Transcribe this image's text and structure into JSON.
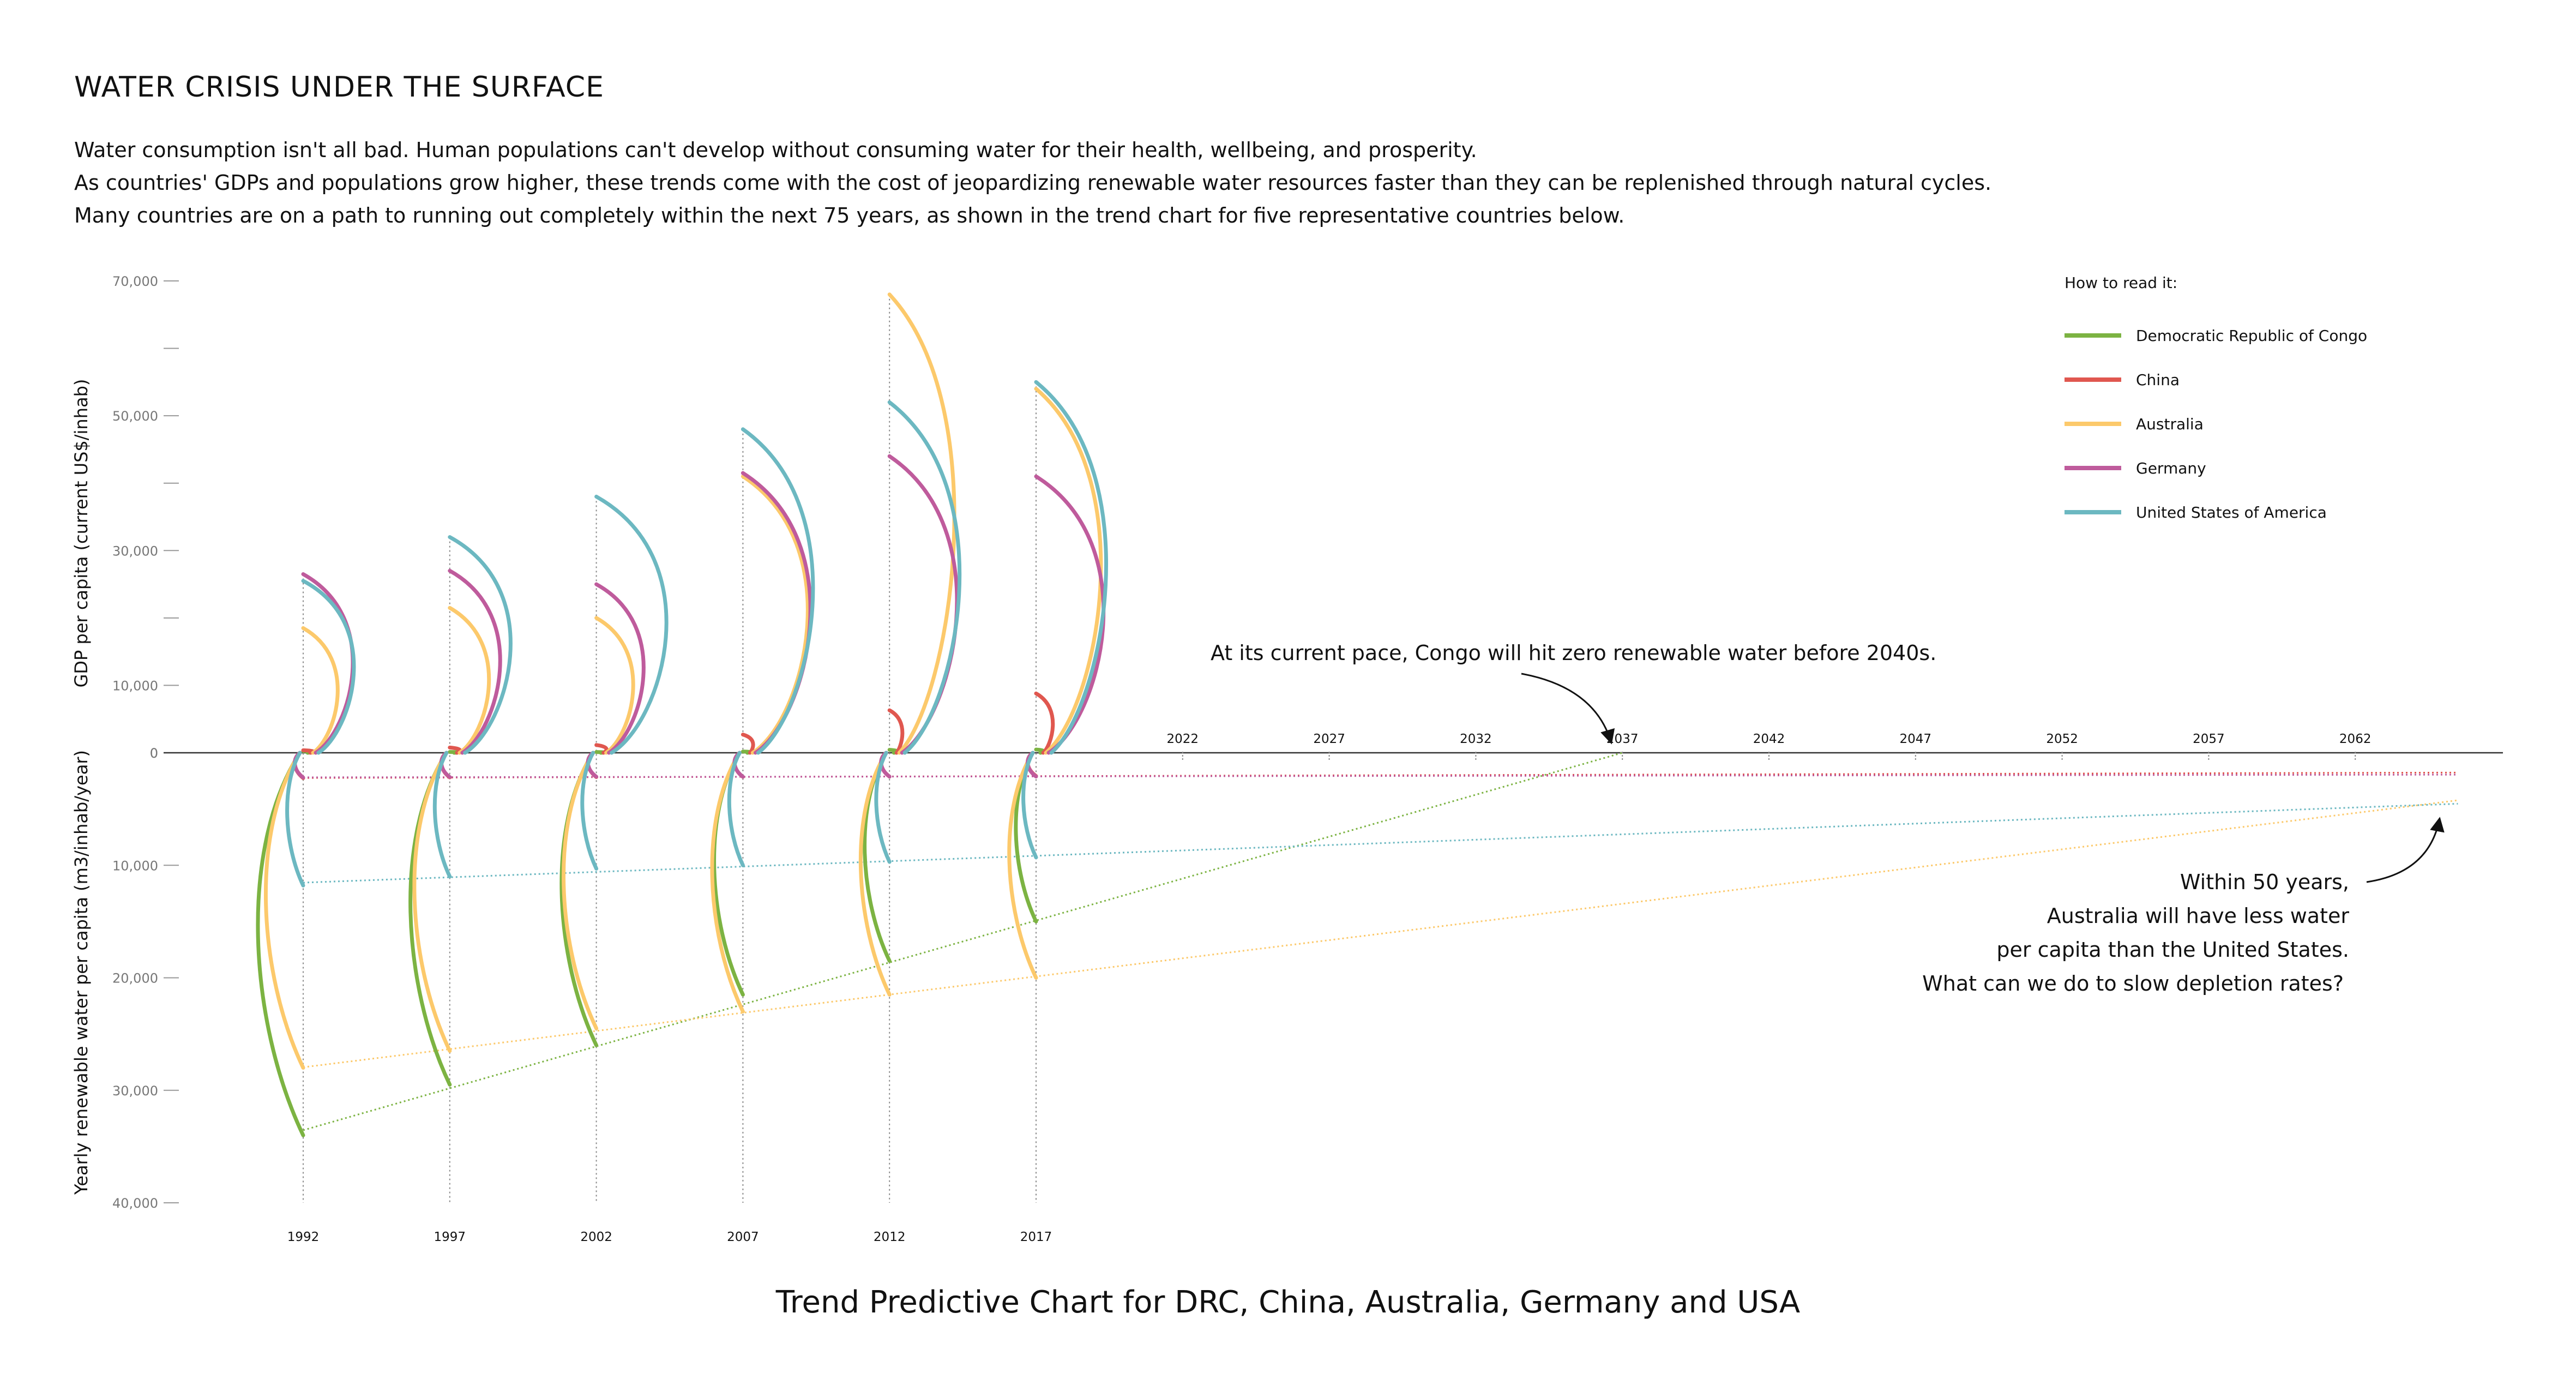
{
  "header": {
    "title": "WATER CRISIS UNDER THE SURFACE",
    "intro": [
      "Water consumption isn't all bad. Human populations can't develop without consuming water for their health, wellbeing, and prosperity.",
      "As countries' GDPs and populations grow higher, these trends come with the cost of jeopardizing renewable water resources faster than they can be replenished through natural cycles.",
      "Many countries are on a path to running out completely within the next 75 years, as shown in the trend chart for five representative countries below."
    ]
  },
  "footer": {
    "title": "Trend Predictive Chart for DRC, China, Australia, Germany and USA"
  },
  "chart_data": {
    "type": "line",
    "ylabel_top": "GDP per capita (current US$/inhab)",
    "ylabel_bottom": "Yearly renewable water per capita (m3/inhab/year)",
    "gdp_ticks": [
      "70,000",
      "50,000",
      "30,000",
      "10,000",
      "0"
    ],
    "gdp_range": [
      0,
      70000
    ],
    "water_ticks": [
      "10,000",
      "20,000",
      "30,000",
      "40,000"
    ],
    "water_range": [
      0,
      40000
    ],
    "years": [
      "1992",
      "1997",
      "2002",
      "2007",
      "2012",
      "2017"
    ],
    "future_years": [
      "2022",
      "2027",
      "2032",
      "2037",
      "2042",
      "2047",
      "2052",
      "2057",
      "2062"
    ],
    "legend_title": "How to read it:",
    "legend_position": "top-right",
    "series": [
      {
        "name": "Democratic Republic of Congo",
        "color": "#7cb342",
        "gdp": [
          250,
          120,
          110,
          180,
          440,
          480
        ],
        "water": [
          34000,
          29500,
          26000,
          21500,
          18500,
          15000
        ],
        "projection_zero_year": 2037
      },
      {
        "name": "China",
        "color": "#e0574f",
        "gdp": [
          370,
          780,
          1150,
          2700,
          6300,
          8800
        ],
        "water": [
          2250,
          2190,
          2160,
          2140,
          2120,
          2070
        ]
      },
      {
        "name": "Australia",
        "color": "#fcc96b",
        "gdp": [
          18500,
          21500,
          20000,
          41000,
          68000,
          54000
        ],
        "water": [
          28000,
          26500,
          24500,
          23000,
          21500,
          20000
        ]
      },
      {
        "name": "Germany",
        "color": "#bf5b9c",
        "gdp": [
          26500,
          27000,
          25000,
          41500,
          44000,
          41000
        ],
        "water": [
          2200,
          2160,
          2130,
          2130,
          2120,
          2110
        ]
      },
      {
        "name": "United States of America",
        "color": "#6cb8c1",
        "gdp": [
          25500,
          32000,
          38000,
          48000,
          52000,
          55000
        ],
        "water": [
          11800,
          11000,
          10300,
          10000,
          9700,
          9300
        ]
      }
    ],
    "annotations": [
      "At its current pace, Congo will hit zero renewable water before 2040s.",
      "Within 50 years,",
      "Australia will have less water",
      "per capita than the United States.",
      "What can we do to slow depletion rates?"
    ]
  }
}
